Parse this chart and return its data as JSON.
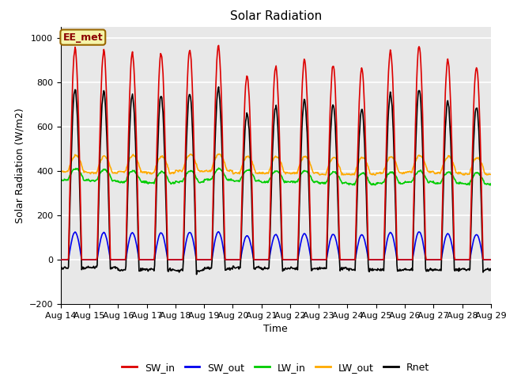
{
  "title": "Solar Radiation",
  "ylabel": "Solar Radiation (W/m2)",
  "xlabel": "Time",
  "ylim": [
    -200,
    1050
  ],
  "n_days": 15,
  "start_day": 14,
  "end_day": 29,
  "annotation_text": "EE_met",
  "annotation_bg": "#f5f5aa",
  "annotation_border": "#996600",
  "background_color": "#e8e8e8",
  "grid_color": "white",
  "lines": {
    "SW_in": {
      "color": "#dd0000",
      "lw": 1.2
    },
    "SW_out": {
      "color": "#0000ee",
      "lw": 1.2
    },
    "LW_in": {
      "color": "#00cc00",
      "lw": 1.2
    },
    "LW_out": {
      "color": "#ffaa00",
      "lw": 1.2
    },
    "Rnet": {
      "color": "#000000",
      "lw": 1.2
    }
  },
  "tick_fontsize": 8,
  "label_fontsize": 9,
  "title_fontsize": 11
}
